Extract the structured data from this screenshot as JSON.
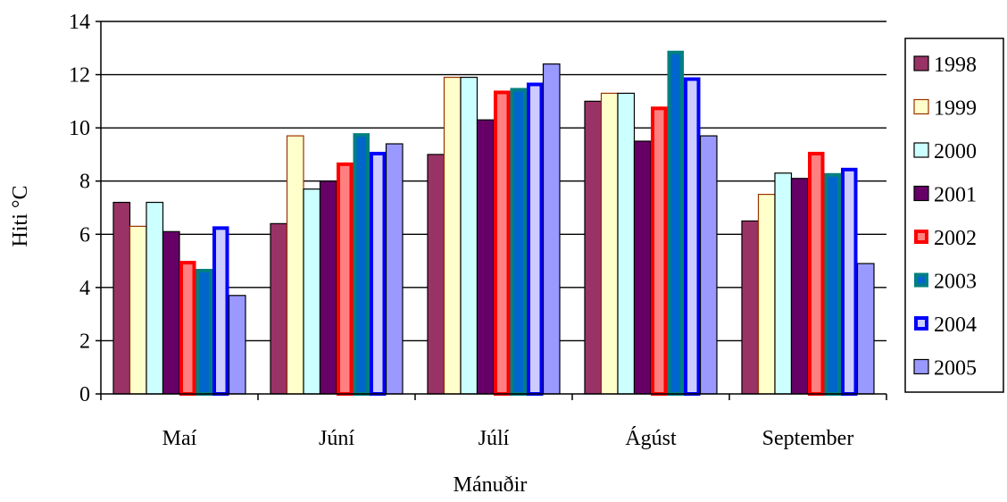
{
  "chart_data": {
    "type": "bar",
    "title": "",
    "xlabel": "Mánuðir",
    "ylabel": "Hiti °C",
    "ylim": [
      0,
      14
    ],
    "yticks": [
      0,
      2,
      4,
      6,
      8,
      10,
      12,
      14
    ],
    "categories": [
      "Maí",
      "Júní",
      "Júlí",
      "Ágúst",
      "September"
    ],
    "grid": true,
    "legend_position": "right",
    "series": [
      {
        "name": "1998",
        "values": [
          7.2,
          6.4,
          9.0,
          11.0,
          6.5
        ],
        "fill": "#993366",
        "stroke": "#000000",
        "stroke_weight": "thin"
      },
      {
        "name": "1999",
        "values": [
          6.3,
          9.7,
          11.9,
          11.3,
          7.5
        ],
        "fill": "#FFFFCC",
        "stroke": "#993300",
        "stroke_weight": "thin"
      },
      {
        "name": "2000",
        "values": [
          7.2,
          7.7,
          11.9,
          11.3,
          8.3
        ],
        "fill": "#CCFFFF",
        "stroke": "#000000",
        "stroke_weight": "thin"
      },
      {
        "name": "2001",
        "values": [
          6.1,
          8.0,
          10.3,
          9.5,
          8.1
        ],
        "fill": "#660066",
        "stroke": "#000000",
        "stroke_weight": "thin"
      },
      {
        "name": "2002",
        "values": [
          5.0,
          8.7,
          11.4,
          10.8,
          9.1
        ],
        "fill": "#FF8080",
        "stroke": "#FF0000",
        "stroke_weight": "thick"
      },
      {
        "name": "2003",
        "values": [
          4.7,
          9.8,
          11.5,
          12.9,
          8.3
        ],
        "fill": "#0066CC",
        "stroke": "#008080",
        "stroke_weight": "thick"
      },
      {
        "name": "2004",
        "values": [
          6.3,
          9.1,
          11.7,
          11.9,
          8.5
        ],
        "fill": "#CCCCFF",
        "stroke": "#0000FF",
        "stroke_weight": "thick"
      },
      {
        "name": "2005",
        "values": [
          3.7,
          9.4,
          12.4,
          9.7,
          4.9
        ],
        "fill": "#9999FF",
        "stroke": "#000000",
        "stroke_weight": "thin"
      }
    ]
  }
}
